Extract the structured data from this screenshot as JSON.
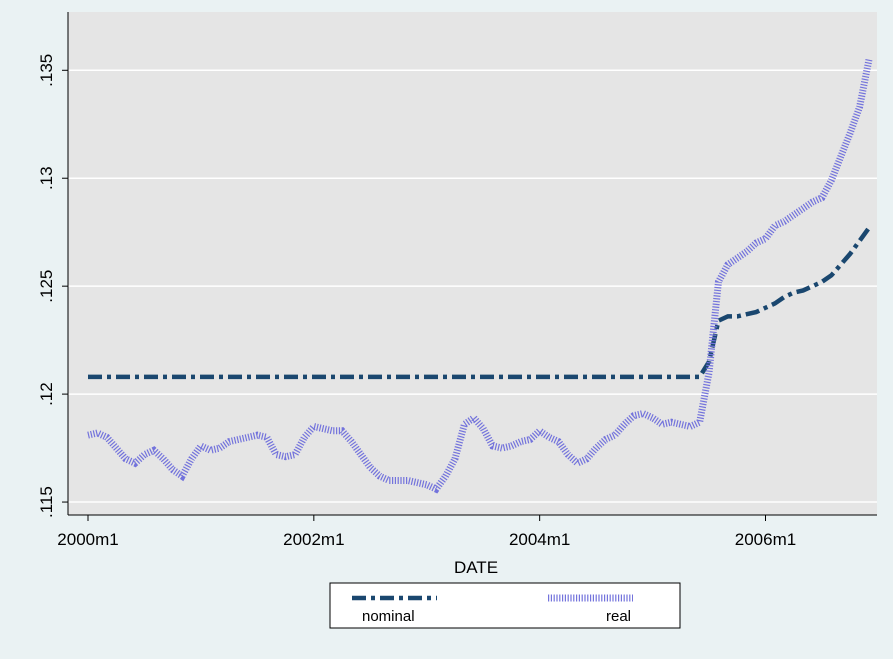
{
  "chart_data": {
    "type": "line",
    "x": [
      "2000m1",
      "2000m2",
      "2000m3",
      "2000m4",
      "2000m5",
      "2000m6",
      "2000m7",
      "2000m8",
      "2000m9",
      "2000m10",
      "2000m11",
      "2000m12",
      "2001m1",
      "2001m2",
      "2001m3",
      "2001m4",
      "2001m5",
      "2001m6",
      "2001m7",
      "2001m8",
      "2001m9",
      "2001m10",
      "2001m11",
      "2001m12",
      "2002m1",
      "2002m2",
      "2002m3",
      "2002m4",
      "2002m5",
      "2002m6",
      "2002m7",
      "2002m8",
      "2002m9",
      "2002m10",
      "2002m11",
      "2002m12",
      "2003m1",
      "2003m2",
      "2003m3",
      "2003m4",
      "2003m5",
      "2003m6",
      "2003m7",
      "2003m8",
      "2003m9",
      "2003m10",
      "2003m11",
      "2003m12",
      "2004m1",
      "2004m2",
      "2004m3",
      "2004m4",
      "2004m5",
      "2004m6",
      "2004m7",
      "2004m8",
      "2004m9",
      "2004m10",
      "2004m11",
      "2004m12",
      "2005m1",
      "2005m2",
      "2005m3",
      "2005m4",
      "2005m5",
      "2005m6",
      "2005m7",
      "2005m8",
      "2005m9",
      "2005m10",
      "2005m11",
      "2005m12",
      "2006m1",
      "2006m2",
      "2006m3",
      "2006m4",
      "2006m5",
      "2006m6",
      "2006m7",
      "2006m8",
      "2006m9",
      "2006m10",
      "2006m11",
      "2006m12"
    ],
    "series": [
      {
        "name": "nominal",
        "color": "#1a476f",
        "values": [
          0.1208,
          0.1208,
          0.1208,
          0.1208,
          0.1208,
          0.1208,
          0.1208,
          0.1208,
          0.1208,
          0.1208,
          0.1208,
          0.1208,
          0.1208,
          0.1208,
          0.1208,
          0.1208,
          0.1208,
          0.1208,
          0.1208,
          0.1208,
          0.1208,
          0.1208,
          0.1208,
          0.1208,
          0.1208,
          0.1208,
          0.1208,
          0.1208,
          0.1208,
          0.1208,
          0.1208,
          0.1208,
          0.1208,
          0.1208,
          0.1208,
          0.1208,
          0.1208,
          0.1208,
          0.1208,
          0.1208,
          0.1208,
          0.1208,
          0.1208,
          0.1208,
          0.1208,
          0.1208,
          0.1208,
          0.1208,
          0.1208,
          0.1208,
          0.1208,
          0.1208,
          0.1208,
          0.1208,
          0.1208,
          0.1208,
          0.1208,
          0.1208,
          0.1208,
          0.1208,
          0.1208,
          0.1208,
          0.1208,
          0.1208,
          0.1208,
          0.1208,
          0.1215,
          0.1234,
          0.1236,
          0.1236,
          0.1237,
          0.1238,
          0.124,
          0.1242,
          0.1245,
          0.1247,
          0.1248,
          0.125,
          0.1252,
          0.1255,
          0.126,
          0.1265,
          0.1271,
          0.1277
        ]
      },
      {
        "name": "real",
        "color": "#7373dc",
        "values": [
          0.1181,
          0.1182,
          0.118,
          0.1175,
          0.117,
          0.1168,
          0.1172,
          0.1174,
          0.117,
          0.1165,
          0.1162,
          0.117,
          0.1176,
          0.1174,
          0.1175,
          0.1178,
          0.1179,
          0.118,
          0.1181,
          0.118,
          0.1172,
          0.1171,
          0.1172,
          0.118,
          0.1185,
          0.1184,
          0.1183,
          0.1183,
          0.1178,
          0.1172,
          0.1166,
          0.1162,
          0.116,
          0.116,
          0.116,
          0.1159,
          0.1158,
          0.1156,
          0.1162,
          0.117,
          0.1186,
          0.1189,
          0.1184,
          0.1176,
          0.1175,
          0.1176,
          0.1178,
          0.1179,
          0.1183,
          0.118,
          0.1178,
          0.1172,
          0.1168,
          0.117,
          0.1175,
          0.1179,
          0.1181,
          0.1186,
          0.119,
          0.1191,
          0.1189,
          0.1186,
          0.1187,
          0.1186,
          0.1185,
          0.1187,
          0.121,
          0.1252,
          0.126,
          0.1263,
          0.1266,
          0.127,
          0.1272,
          0.1278,
          0.128,
          0.1283,
          0.1286,
          0.1289,
          0.1291,
          0.1299,
          0.131,
          0.1321,
          0.1333,
          0.1355
        ]
      }
    ],
    "xlabel": "DATE",
    "xticks": [
      "2000m1",
      "2002m1",
      "2004m1",
      "2006m1"
    ],
    "ylim": [
      0.1144,
      0.1377
    ],
    "yticks": [
      {
        "value": 0.115,
        "label": ".115"
      },
      {
        "value": 0.12,
        "label": ".12"
      },
      {
        "value": 0.125,
        "label": ".125"
      },
      {
        "value": 0.13,
        "label": ".13"
      },
      {
        "value": 0.135,
        "label": ".135"
      }
    ],
    "grid": true,
    "legend": "bottom"
  }
}
